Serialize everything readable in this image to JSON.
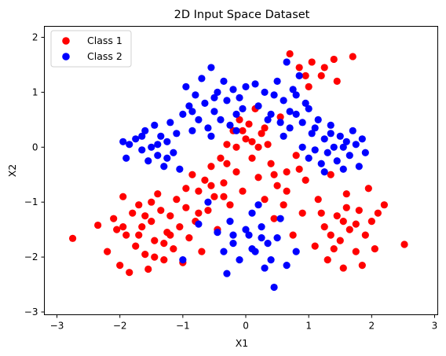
{
  "chart_data": {
    "type": "scatter",
    "title": "2D Input Space Dataset",
    "xlabel": "X1",
    "ylabel": "X2",
    "xlim": [
      -3.2,
      3.05
    ],
    "ylim": [
      -3.05,
      2.2
    ],
    "x_ticks": [
      -3,
      -2,
      -1,
      0,
      1,
      2,
      3
    ],
    "y_ticks": [
      -3,
      -2,
      -1,
      0,
      1,
      2
    ],
    "x_tick_labels": [
      "−3",
      "−2",
      "−1",
      "0",
      "1",
      "2",
      "3"
    ],
    "y_tick_labels": [
      "−3",
      "−2",
      "−1",
      "0",
      "1",
      "2"
    ],
    "grid": false,
    "legend": {
      "placement": "top-left"
    },
    "series": [
      {
        "name": "Class 1",
        "color": "#ff0000",
        "points": [
          [
            -2.75,
            -1.66
          ],
          [
            -2.35,
            -1.42
          ],
          [
            -2.2,
            -1.9
          ],
          [
            -2.1,
            -1.3
          ],
          [
            -2.05,
            -1.5
          ],
          [
            -2.0,
            -2.15
          ],
          [
            -1.95,
            -0.9
          ],
          [
            -1.9,
            -1.6
          ],
          [
            -1.85,
            -2.28
          ],
          [
            -1.8,
            -1.2
          ],
          [
            -1.75,
            -1.8
          ],
          [
            -1.7,
            -1.05
          ],
          [
            -1.65,
            -1.45
          ],
          [
            -1.6,
            -1.95
          ],
          [
            -1.55,
            -2.22
          ],
          [
            -1.5,
            -1.35
          ],
          [
            -1.45,
            -1.7
          ],
          [
            -1.4,
            -0.85
          ],
          [
            -1.35,
            -1.15
          ],
          [
            -1.3,
            -2.05
          ],
          [
            -1.25,
            -1.55
          ],
          [
            -1.2,
            -1.25
          ],
          [
            -1.15,
            -1.85
          ],
          [
            -1.1,
            -0.95
          ],
          [
            -1.05,
            -1.45
          ],
          [
            -1.0,
            -2.1
          ],
          [
            -0.95,
            -1.1
          ],
          [
            -0.9,
            -1.65
          ],
          [
            -0.85,
            -0.5
          ],
          [
            -0.8,
            -1.35
          ],
          [
            -0.75,
            -0.8
          ],
          [
            -0.7,
            -1.9
          ],
          [
            -0.65,
            -0.6
          ],
          [
            -0.6,
            -1.15
          ],
          [
            -0.55,
            -0.35
          ],
          [
            -0.5,
            -0.9
          ],
          [
            -0.45,
            -1.5
          ],
          [
            -0.4,
            -0.2
          ],
          [
            -0.35,
            -0.65
          ],
          [
            -0.3,
            0.05
          ],
          [
            -0.25,
            -1.05
          ],
          [
            -0.2,
            0.3
          ],
          [
            -0.15,
            -0.45
          ],
          [
            -0.1,
            0.5
          ],
          [
            -0.05,
            -0.8
          ],
          [
            0.0,
            0.15
          ],
          [
            0.05,
            0.42
          ],
          [
            0.1,
            -0.2
          ],
          [
            0.15,
            0.7
          ],
          [
            0.2,
            -0.55
          ],
          [
            0.25,
            0.25
          ],
          [
            0.3,
            -0.95
          ],
          [
            0.35,
            0.05
          ],
          [
            0.4,
            -0.3
          ],
          [
            0.45,
            -1.3
          ],
          [
            0.5,
            -0.7
          ],
          [
            0.55,
            0.55
          ],
          [
            0.6,
            -1.05
          ],
          [
            0.65,
            -0.45
          ],
          [
            0.7,
            1.7
          ],
          [
            0.75,
            -1.6
          ],
          [
            0.8,
            -0.15
          ],
          [
            0.85,
            1.45
          ],
          [
            0.9,
            -1.2
          ],
          [
            0.95,
            -0.6
          ],
          [
            1.0,
            1.1
          ],
          [
            1.05,
            1.55
          ],
          [
            1.1,
            -1.8
          ],
          [
            1.15,
            -0.95
          ],
          [
            1.2,
            1.3
          ],
          [
            1.25,
            -1.45
          ],
          [
            1.3,
            -2.05
          ],
          [
            1.35,
            -0.5
          ],
          [
            1.4,
            1.6
          ],
          [
            1.45,
            -1.25
          ],
          [
            1.5,
            -1.7
          ],
          [
            1.55,
            -2.2
          ],
          [
            1.6,
            -0.85
          ],
          [
            1.65,
            -1.5
          ],
          [
            1.7,
            1.65
          ],
          [
            1.75,
            -1.9
          ],
          [
            1.8,
            -1.15
          ],
          [
            1.85,
            -2.15
          ],
          [
            1.9,
            -1.6
          ],
          [
            1.95,
            -0.75
          ],
          [
            2.0,
            -1.35
          ],
          [
            2.05,
            -1.85
          ],
          [
            2.1,
            -1.2
          ],
          [
            2.2,
            -1.05
          ],
          [
            2.52,
            -1.77
          ],
          [
            -1.95,
            -1.45
          ],
          [
            -1.7,
            -1.6
          ],
          [
            -1.5,
            -1.0
          ],
          [
            -1.3,
            -1.75
          ],
          [
            -1.6,
            -1.25
          ],
          [
            -1.45,
            -2.0
          ],
          [
            -1.2,
            -1.6
          ],
          [
            -0.95,
            -0.75
          ],
          [
            -0.75,
            -1.2
          ],
          [
            -0.55,
            -0.7
          ],
          [
            -0.35,
            -0.9
          ],
          [
            -0.15,
            0.0
          ],
          [
            0.1,
            0.1
          ],
          [
            0.3,
            0.35
          ],
          [
            0.45,
            -0.5
          ],
          [
            0.65,
            -0.8
          ],
          [
            0.85,
            -0.4
          ],
          [
            1.2,
            -1.2
          ],
          [
            1.35,
            -1.6
          ],
          [
            1.55,
            -1.35
          ],
          [
            1.75,
            -1.4
          ],
          [
            1.6,
            -1.1
          ],
          [
            1.4,
            -1.85
          ],
          [
            1.25,
            1.45
          ],
          [
            0.95,
            1.3
          ],
          [
            1.45,
            1.2
          ],
          [
            -0.05,
            0.3
          ],
          [
            0.2,
            0.0
          ],
          [
            -0.3,
            -0.3
          ]
        ]
      },
      {
        "name": "Class 2",
        "color": "#0000ff",
        "points": [
          [
            -1.95,
            0.1
          ],
          [
            -1.9,
            -0.2
          ],
          [
            -1.85,
            0.05
          ],
          [
            -1.75,
            0.15
          ],
          [
            -1.65,
            -0.05
          ],
          [
            -1.6,
            0.3
          ],
          [
            -1.55,
            -0.25
          ],
          [
            -1.5,
            0.0
          ],
          [
            -1.45,
            0.4
          ],
          [
            -1.4,
            -0.15
          ],
          [
            -1.35,
            0.2
          ],
          [
            -1.3,
            -0.35
          ],
          [
            -1.25,
            0.1
          ],
          [
            -1.2,
            0.45
          ],
          [
            -1.15,
            -0.1
          ],
          [
            -1.1,
            0.25
          ],
          [
            -1.05,
            -0.4
          ],
          [
            -1.0,
            0.6
          ],
          [
            -0.95,
            1.1
          ],
          [
            -0.9,
            0.75
          ],
          [
            -0.85,
            0.3
          ],
          [
            -0.8,
            0.95
          ],
          [
            -0.75,
            0.5
          ],
          [
            -0.7,
            1.25
          ],
          [
            -0.65,
            0.8
          ],
          [
            -0.6,
            0.35
          ],
          [
            -0.55,
            1.45
          ],
          [
            -0.5,
            0.65
          ],
          [
            -0.45,
            1.0
          ],
          [
            -0.4,
            0.5
          ],
          [
            -0.35,
            1.2
          ],
          [
            -0.3,
            0.85
          ],
          [
            -0.25,
            0.4
          ],
          [
            -0.2,
            1.05
          ],
          [
            -0.15,
            0.6
          ],
          [
            -0.1,
            0.9
          ],
          [
            -0.05,
            0.7
          ],
          [
            0.0,
            1.1
          ],
          [
            0.05,
            -1.6
          ],
          [
            0.1,
            -1.2
          ],
          [
            0.15,
            -1.9
          ],
          [
            0.2,
            0.75
          ],
          [
            0.25,
            -1.45
          ],
          [
            0.3,
            1.0
          ],
          [
            0.35,
            -1.75
          ],
          [
            0.4,
            0.6
          ],
          [
            0.45,
            -2.55
          ],
          [
            0.5,
            1.2
          ],
          [
            0.55,
            -1.3
          ],
          [
            0.6,
            0.85
          ],
          [
            0.65,
            1.55
          ],
          [
            0.7,
            0.35
          ],
          [
            0.75,
            1.05
          ],
          [
            0.8,
            0.6
          ],
          [
            0.85,
            1.3
          ],
          [
            0.9,
            0.0
          ],
          [
            0.95,
            0.8
          ],
          [
            1.0,
            -0.2
          ],
          [
            1.05,
            0.25
          ],
          [
            1.1,
            -0.05
          ],
          [
            1.15,
            0.5
          ],
          [
            1.2,
            -0.3
          ],
          [
            1.25,
            0.15
          ],
          [
            1.3,
            -0.1
          ],
          [
            1.35,
            0.4
          ],
          [
            1.4,
            0.0
          ],
          [
            1.45,
            -0.25
          ],
          [
            1.5,
            0.2
          ],
          [
            1.55,
            -0.4
          ],
          [
            1.6,
            0.1
          ],
          [
            1.65,
            -0.15
          ],
          [
            1.7,
            0.3
          ],
          [
            1.75,
            0.05
          ],
          [
            1.8,
            -0.35
          ],
          [
            1.85,
            0.15
          ],
          [
            1.9,
            -0.1
          ],
          [
            -0.45,
            -1.55
          ],
          [
            -0.35,
            -1.9
          ],
          [
            -0.3,
            -2.3
          ],
          [
            -0.25,
            -1.35
          ],
          [
            -0.2,
            -1.75
          ],
          [
            -0.1,
            -2.05
          ],
          [
            0.0,
            -1.5
          ],
          [
            0.2,
            -1.05
          ],
          [
            0.3,
            -2.2
          ],
          [
            0.5,
            -1.65
          ],
          [
            0.65,
            -2.15
          ],
          [
            0.8,
            -1.9
          ],
          [
            -0.6,
            -1.0
          ],
          [
            -0.75,
            -1.4
          ],
          [
            -1.0,
            -2.05
          ],
          [
            -0.5,
            0.9
          ],
          [
            -0.15,
            0.3
          ],
          [
            0.35,
            0.5
          ],
          [
            0.55,
            0.45
          ],
          [
            0.15,
            1.15
          ],
          [
            0.45,
            0.95
          ],
          [
            0.7,
            0.65
          ],
          [
            -0.55,
            0.2
          ],
          [
            -0.85,
            0.65
          ],
          [
            -1.25,
            -0.2
          ],
          [
            -1.4,
            0.05
          ],
          [
            -1.65,
            0.2
          ],
          [
            1.35,
            0.25
          ],
          [
            1.55,
            0.0
          ],
          [
            1.1,
            0.35
          ],
          [
            1.25,
            -0.45
          ],
          [
            -0.2,
            -1.6
          ],
          [
            0.1,
            -1.85
          ],
          [
            0.25,
            -1.65
          ],
          [
            0.4,
            -2.05
          ],
          [
            0.6,
            0.2
          ],
          [
            0.8,
            0.95
          ],
          [
            0.9,
            0.45
          ],
          [
            1.0,
            0.7
          ]
        ]
      }
    ]
  }
}
